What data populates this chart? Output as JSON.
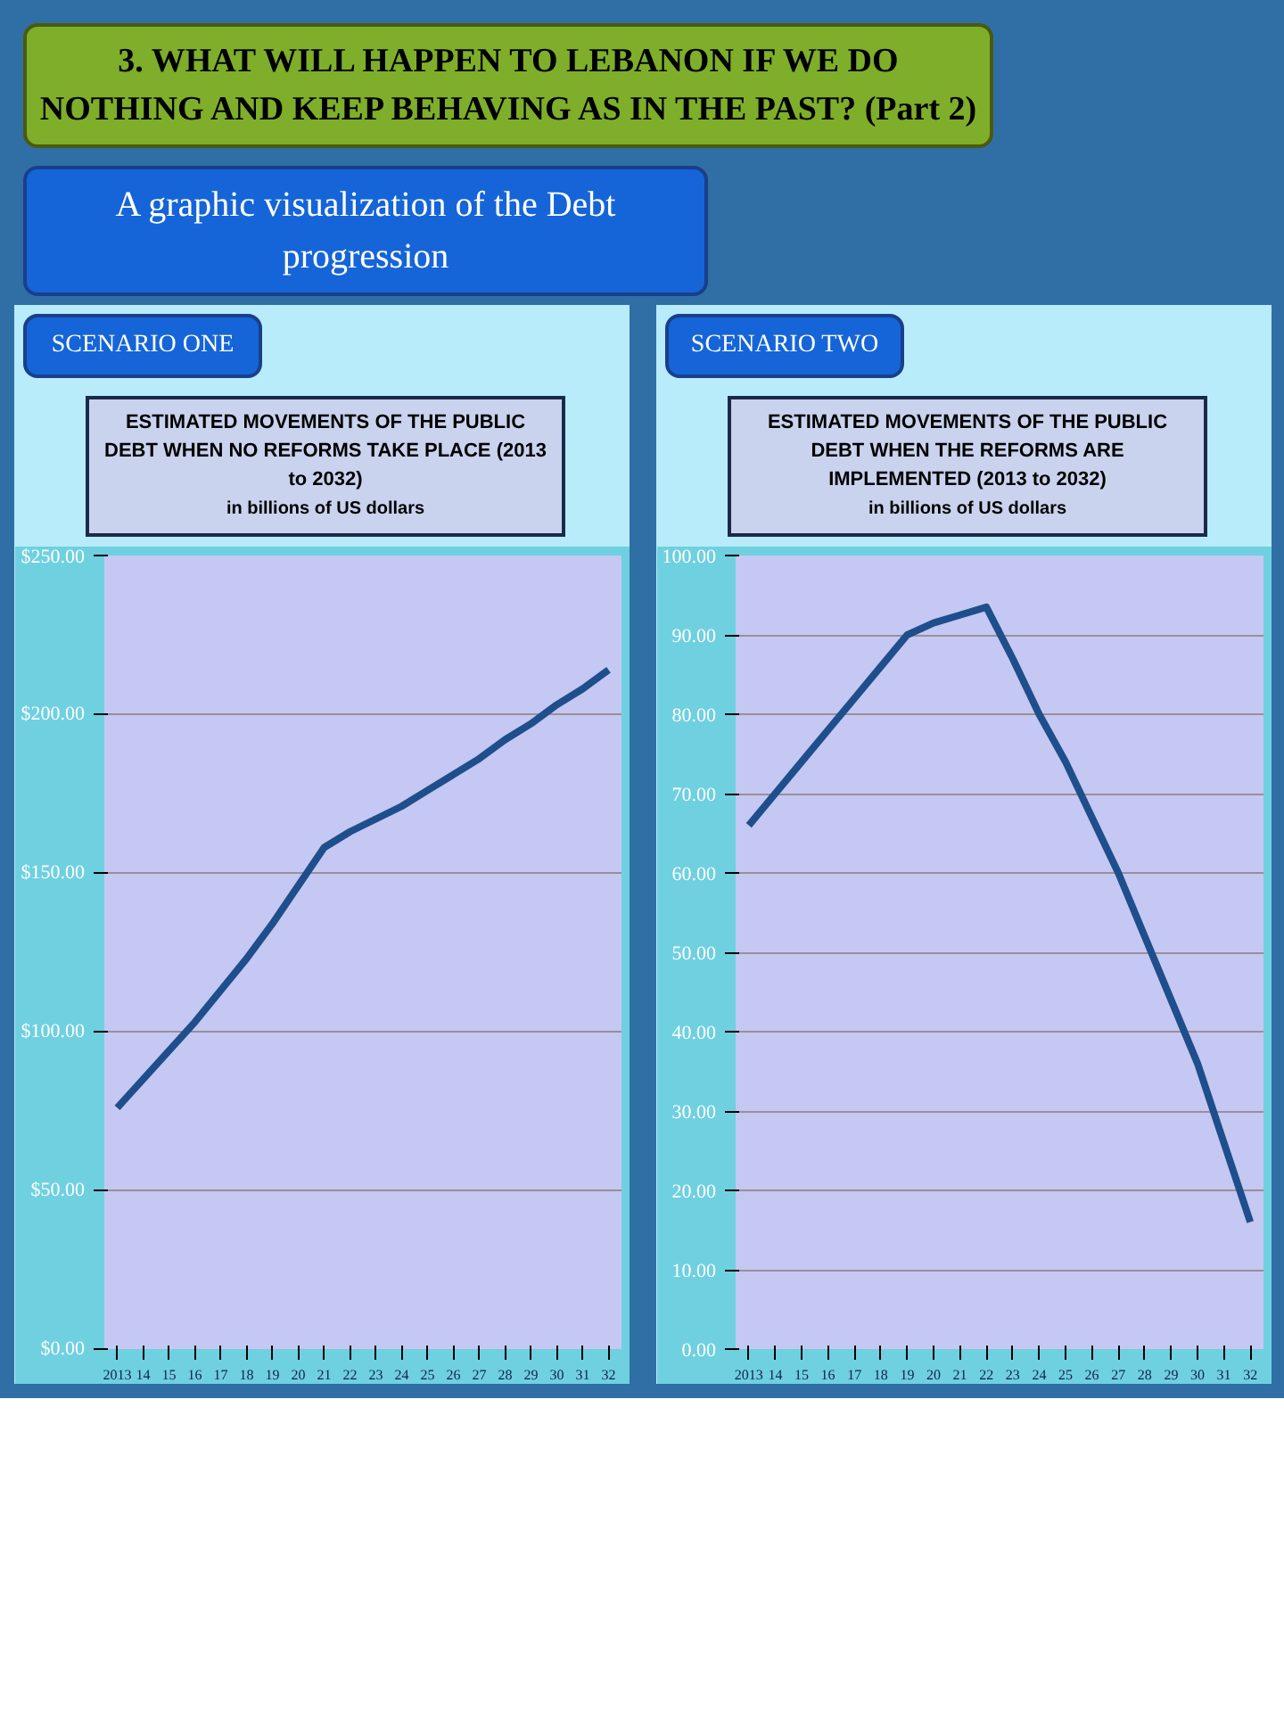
{
  "chart_data": [
    {
      "type": "line",
      "title": "ESTIMATED MOVEMENTS OF THE PUBLIC DEBT WHEN  NO REFORMS TAKE PLACE (2013 to 2032)",
      "subtitle": "in billions  of US dollars",
      "annotations": [
        "3. WHAT WILL HAPPEN TO LEBANON IF WE DO NOTHING  AND KEEP BEHAVING AS IN THE PAST? (Part 2)",
        "A graphic visualization of the Debt progression",
        "SCENARIO ONE"
      ],
      "categories": [
        "2013",
        "14",
        "15",
        "16",
        "17",
        "18",
        "19",
        "20",
        "21",
        "22",
        "23",
        "24",
        "25",
        "26",
        "27",
        "28",
        "29",
        "30",
        "31",
        "32"
      ],
      "series": [
        {
          "color": "#1f4e8c",
          "values": [
            76,
            85,
            94,
            103,
            113,
            123,
            134,
            146,
            158,
            163,
            167,
            171,
            176,
            181,
            186,
            192,
            197,
            203,
            208,
            214
          ]
        }
      ],
      "ylim": [
        0,
        250
      ],
      "yticks": [
        {
          "value": 0,
          "label": "$0.00"
        },
        {
          "value": 50,
          "label": "$50.00"
        },
        {
          "value": 100,
          "label": "$100.00"
        },
        {
          "value": 150,
          "label": "$150.00"
        },
        {
          "value": 200,
          "label": "$200.00"
        },
        {
          "value": 250,
          "label": "$250.00"
        }
      ],
      "grid": "y",
      "line_style": "solid"
    },
    {
      "type": "line",
      "title": "ESTIMATED MOVEMENTS OF THE PUBLIC DEBT WHEN  THE REFORMS ARE IMPLEMENTED (2013 to 2032)",
      "subtitle": "in billions  of US dollars",
      "annotations": [
        "SCENARIO TWO"
      ],
      "categories": [
        "2013",
        "14",
        "15",
        "16",
        "17",
        "18",
        "19",
        "20",
        "21",
        "22",
        "23",
        "24",
        "25",
        "26",
        "27",
        "28",
        "29",
        "30",
        "31",
        "32"
      ],
      "series": [
        {
          "color": "#1f4e8c",
          "values": [
            66,
            70,
            74,
            78,
            82,
            86,
            90,
            91.5,
            92.5,
            93.5,
            87,
            80,
            74,
            67,
            60,
            52,
            44,
            36,
            26,
            16
          ]
        }
      ],
      "ylim": [
        0,
        100
      ],
      "yticks": [
        {
          "value": 0,
          "label": "0.00"
        },
        {
          "value": 10,
          "label": "10.00"
        },
        {
          "value": 20,
          "label": "20.00"
        },
        {
          "value": 30,
          "label": "30.00"
        },
        {
          "value": 40,
          "label": "40.00"
        },
        {
          "value": 50,
          "label": "50.00"
        },
        {
          "value": 60,
          "label": "60.00"
        },
        {
          "value": 70,
          "label": "70.00"
        },
        {
          "value": 80,
          "label": "80.00"
        },
        {
          "value": 90,
          "label": "90.00"
        },
        {
          "value": 100,
          "label": "100.00"
        }
      ],
      "grid": "y",
      "line_style": "solid"
    }
  ]
}
